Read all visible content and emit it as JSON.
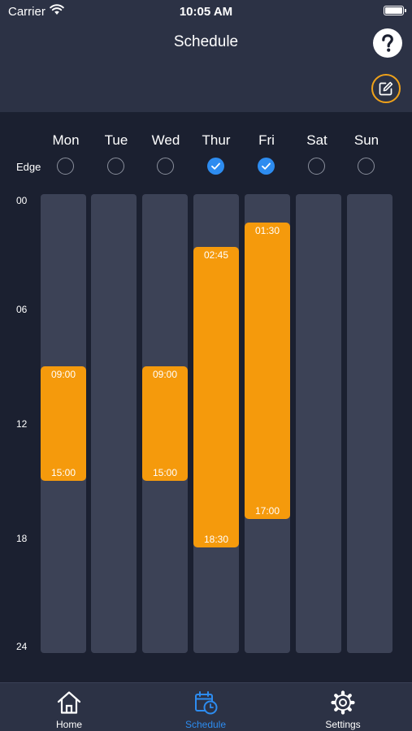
{
  "status_bar": {
    "carrier": "Carrier",
    "time": "10:05 AM"
  },
  "header": {
    "title": "Schedule"
  },
  "edge_label": "Edge",
  "days": [
    {
      "label": "Mon",
      "edge_checked": false,
      "block": {
        "start": "09:00",
        "end": "15:00"
      }
    },
    {
      "label": "Tue",
      "edge_checked": false,
      "block": null
    },
    {
      "label": "Wed",
      "edge_checked": false,
      "block": {
        "start": "09:00",
        "end": "15:00"
      }
    },
    {
      "label": "Thur",
      "edge_checked": true,
      "block": {
        "start": "02:45",
        "end": "18:30"
      }
    },
    {
      "label": "Fri",
      "edge_checked": true,
      "block": {
        "start": "01:30",
        "end": "17:00"
      }
    },
    {
      "label": "Sat",
      "edge_checked": false,
      "block": null
    },
    {
      "label": "Sun",
      "edge_checked": false,
      "block": null
    }
  ],
  "hour_labels": [
    "00",
    "06",
    "12",
    "18",
    "24"
  ],
  "tabs": [
    {
      "label": "Home",
      "icon": "house-icon",
      "active": false
    },
    {
      "label": "Schedule",
      "icon": "calendar-clock-icon",
      "active": true
    },
    {
      "label": "Settings",
      "icon": "gear-icon",
      "active": false
    }
  ],
  "colors": {
    "accent": "#f59a0c",
    "selected": "#2d8cf0",
    "background": "#1b2030",
    "header": "#2c3245",
    "track": "#3c4256"
  }
}
